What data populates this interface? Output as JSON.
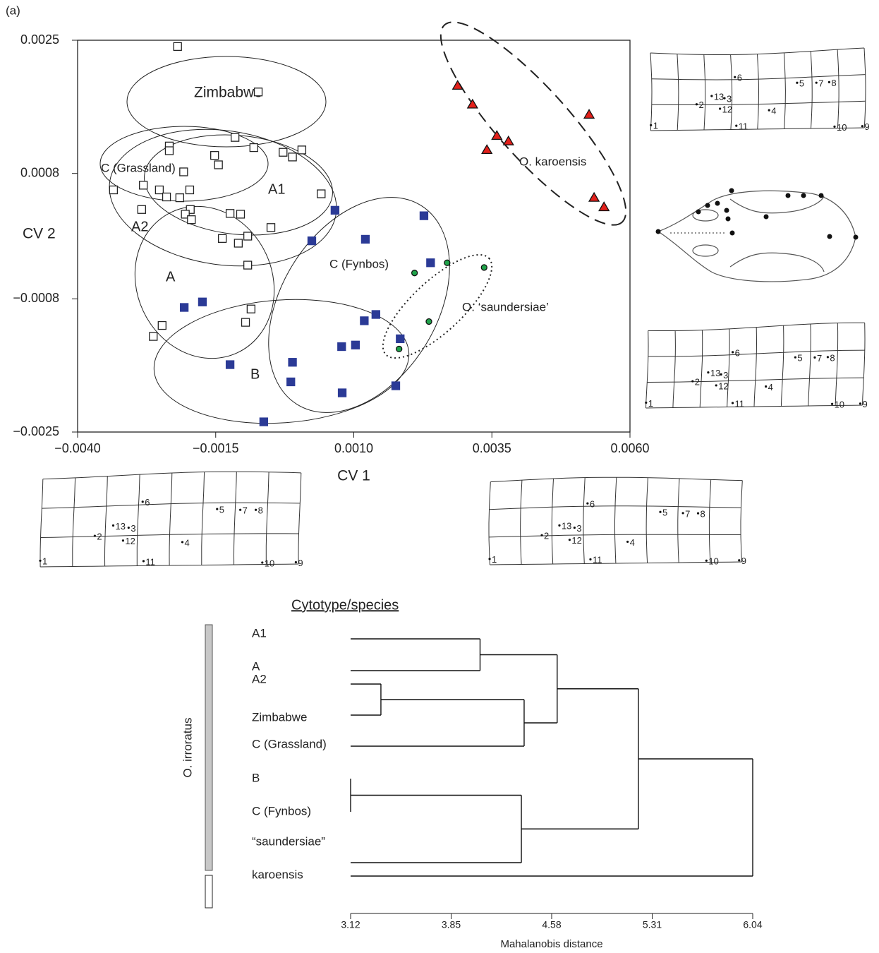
{
  "panel_label": "(a)",
  "landmarks": [
    "1",
    "2",
    "3",
    "4",
    "5",
    "6",
    "7",
    "8",
    "9",
    "10",
    "11",
    "12",
    "13"
  ],
  "chart_data": [
    {
      "type": "scatter",
      "xlabel": "CV 1",
      "ylabel": "CV 2",
      "xlim": [
        -0.004,
        0.006
      ],
      "ylim": [
        -0.0025,
        0.0025
      ],
      "xticks": [
        {
          "value": -0.004,
          "label": "−0.0040"
        },
        {
          "value": -0.0015,
          "label": "−0.0015"
        },
        {
          "value": 0.001,
          "label": "0.0010"
        },
        {
          "value": 0.0035,
          "label": "0.0035"
        },
        {
          "value": 0.006,
          "label": "0.0060"
        }
      ],
      "yticks": [
        {
          "value": -0.0025,
          "label": "−0.0025"
        },
        {
          "value": -0.0008,
          "label": "−0.0008"
        },
        0.0008,
        0.0025
      ],
      "annotations": [
        "Zimbabwe",
        "C (Grassland)",
        "A1",
        "A2",
        "A",
        "B",
        "C (Fynbos)",
        "O. ‘saundersiae’",
        "O. karoensis"
      ],
      "series": [
        {
          "marker": "square-open",
          "color": "#ffffff",
          "x": [
            -0.00219,
            -0.00073,
            -0.00115,
            -0.00234,
            -0.00234,
            -0.00152,
            -0.00145,
            -0.00081,
            -0.00028,
            -0.00011,
            6e-05,
            -0.00208,
            -0.00335,
            -0.00281,
            -0.00252,
            -0.00239,
            -0.00215,
            -0.00197,
            -0.00284,
            -0.00196,
            -0.00205,
            -0.00194,
            -0.00124,
            -0.00105,
            0.00041,
            -0.0005,
            -0.00138,
            -0.00092,
            -0.00109,
            -0.00092,
            -0.00086,
            -0.00096,
            -0.00247,
            -0.00263
          ],
          "values": [
            0.00242,
            0.00184,
            0.00126,
            0.00115,
            0.00109,
            0.00103,
            0.00091,
            0.00113,
            0.00107,
            0.00101,
            0.0011,
            0.00082,
            0.00059,
            0.00065,
            0.00059,
            0.0005,
            0.00049,
            0.00059,
            0.00034,
            0.00034,
            0.00028,
            0.00021,
            0.00029,
            0.00028,
            0.00054,
            0.00011,
            -3e-05,
            0,
            -9e-05,
            -0.00037,
            -0.00093,
            -0.0011,
            -0.00114,
            -0.00128
          ]
        },
        {
          "marker": "square",
          "color": "#2b3a96",
          "x": [
            0.00066,
            0.00227,
            0.00121,
            0.00024,
            0.00239,
            -0.00207,
            -0.00174,
            0.00119,
            0.0014,
            0.00184,
            0.00078,
            0.00103,
            -0.00011,
            -0.00124,
            -0.00014,
            0.00079,
            0.00176,
            -0.00063
          ],
          "values": [
            0.00033,
            0.00026,
            -4e-05,
            -6e-05,
            -0.00034,
            -0.00091,
            -0.00084,
            -0.00108,
            -0.001,
            -0.00131,
            -0.00141,
            -0.00139,
            -0.00161,
            -0.00164,
            -0.00186,
            -0.002,
            -0.00191,
            -0.00237
          ]
        },
        {
          "marker": "circle",
          "color": "#1fa34a",
          "x": [
            0.0021,
            0.00269,
            0.00336,
            0.00236,
            0.00182
          ],
          "values": [
            -0.00047,
            -0.00034,
            -0.0004,
            -0.00109,
            -0.00144
          ]
        },
        {
          "marker": "triangle",
          "color": "#e3201b",
          "x": [
            0.00288,
            0.00315,
            0.00359,
            0.00341,
            0.0038,
            0.00526,
            0.00535,
            0.00553
          ],
          "values": [
            0.00192,
            0.00168,
            0.00128,
            0.0011,
            0.00121,
            0.00155,
            0.00049,
            0.00037
          ]
        }
      ]
    },
    {
      "type": "dendrogram",
      "title": "Cytotype/species",
      "xlabel": "Mahalanobis distance",
      "group_label": "O. irroratus",
      "xlim": [
        3.12,
        6.04
      ],
      "xticks": [
        3.12,
        3.85,
        4.58,
        5.31,
        6.04
      ],
      "leaves": [
        "A1",
        "A",
        "A2",
        "Zimbabwe",
        "C (Grassland)",
        "B",
        "C (Fynbos)",
        "“saundersiae”",
        "karoensis"
      ],
      "merges": [
        {
          "nodes": [
            0,
            1
          ],
          "height": 4.06
        },
        {
          "nodes": [
            2,
            3
          ],
          "height": 3.34
        },
        {
          "nodes": [
            10,
            4
          ],
          "height": 4.38
        },
        {
          "nodes": [
            9,
            11
          ],
          "height": 4.62
        },
        {
          "nodes": [
            5,
            6
          ],
          "height": 3.12
        },
        {
          "nodes": [
            13,
            7
          ],
          "height": 4.36
        },
        {
          "nodes": [
            12,
            14
          ],
          "height": 5.21
        },
        {
          "nodes": [
            15,
            8
          ],
          "height": 6.04
        }
      ]
    }
  ]
}
